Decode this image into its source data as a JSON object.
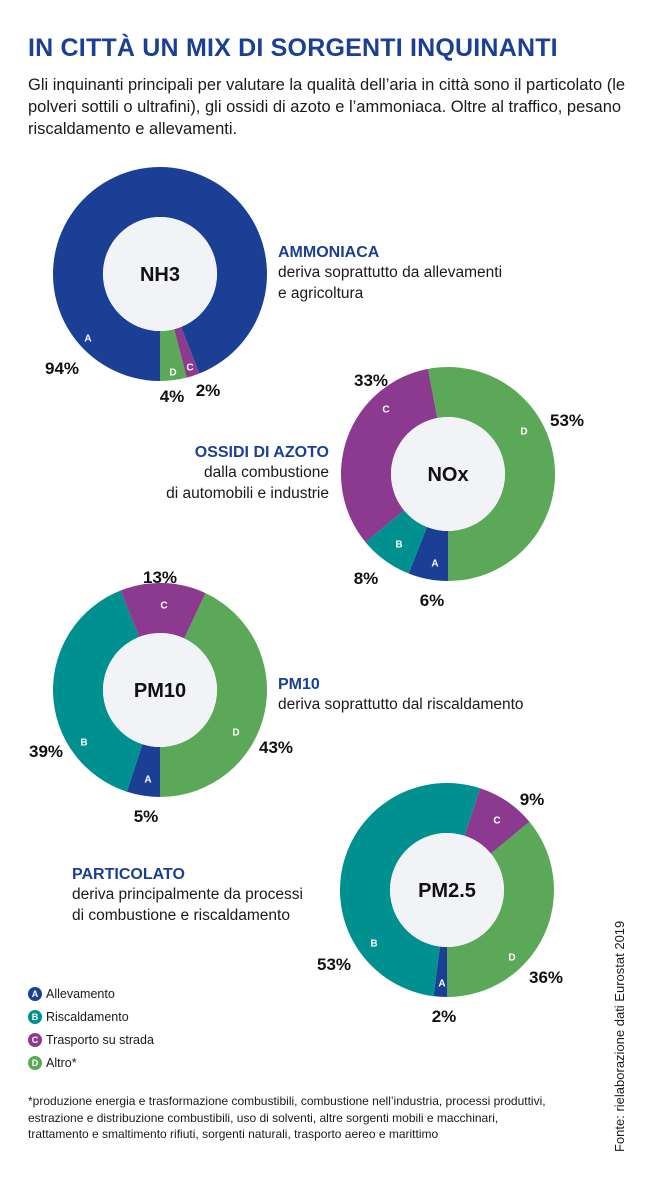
{
  "title": "IN CITTÀ UN MIX DI SORGENTI INQUINANTI",
  "intro": "Gli inquinanti principali per valutare la qualità dell’aria in città sono il particolato (le polveri sottili o ultrafini), gli ossidi di azoto e l’ammoniaca. Oltre al traffico, pesano riscaldamento e allevamenti.",
  "descriptions": [
    {
      "heading": "AMMONIACA",
      "lines": [
        "deriva soprattutto da allevamenti",
        "e agricoltura"
      ]
    },
    {
      "heading": "OSSIDI DI AZOTO",
      "lines": [
        "dalla combustione",
        "di automobili e industrie"
      ]
    },
    {
      "heading": "PM10",
      "lines": [
        "deriva soprattutto dal riscaldamento"
      ]
    },
    {
      "heading": "PARTICOLATO",
      "lines": [
        "deriva principalmente da processi",
        "di combustione e riscaldamento"
      ]
    }
  ],
  "legend": [
    {
      "letter": "A",
      "label": "Allevamento",
      "color": "#1a3f94"
    },
    {
      "letter": "B",
      "label": "Riscaldamento",
      "color": "#00908f"
    },
    {
      "letter": "C",
      "label": "Trasporto su strada",
      "color": "#8b3a8f"
    },
    {
      "letter": "D",
      "label": "Altro*",
      "color": "#5aa858"
    }
  ],
  "footnote": "*produzione energia e trasformazione combustibili, combustione nell’industria, processi produttivi, estrazione e distribuzione combustibili, uso di solventi, altre sorgenti mobili e macchinari, trattamento e smaltimento rifiuti, sorgenti naturali, trasporto aereo e marittimo",
  "source": "Fonte: rielaborazione dati Eurostat 2019",
  "chart_data": [
    {
      "type": "pie",
      "title": "NH3",
      "categories": [
        "A",
        "C",
        "D"
      ],
      "values": [
        94,
        2,
        4
      ],
      "labels": [
        "94%",
        "2%",
        "4%"
      ]
    },
    {
      "type": "pie",
      "title": "NOx",
      "categories": [
        "A",
        "B",
        "C",
        "D"
      ],
      "values": [
        6,
        8,
        33,
        53
      ],
      "labels": [
        "6%",
        "8%",
        "33%",
        "53%"
      ]
    },
    {
      "type": "pie",
      "title": "PM10",
      "categories": [
        "A",
        "B",
        "C",
        "D"
      ],
      "values": [
        5,
        39,
        13,
        43
      ],
      "labels": [
        "5%",
        "39%",
        "13%",
        "43%"
      ]
    },
    {
      "type": "pie",
      "title": "PM2.5",
      "categories": [
        "A",
        "B",
        "C",
        "D"
      ],
      "values": [
        2,
        53,
        9,
        36
      ],
      "labels": [
        "2%",
        "53%",
        "9%",
        "36%"
      ]
    }
  ]
}
